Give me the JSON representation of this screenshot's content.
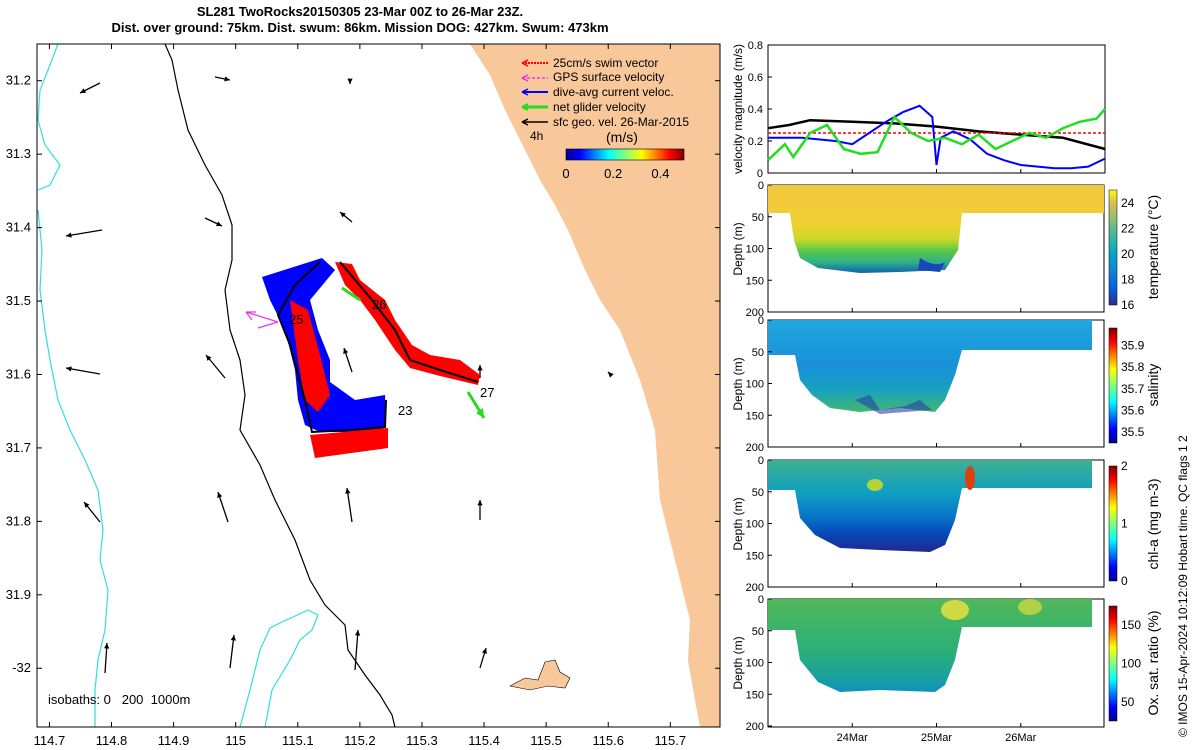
{
  "title_line1": "SL281 TwoRocks20150305 23-Mar 00Z to 26-Mar 23Z.",
  "title_line2": "Dist. over ground: 75km. Dist. swum: 86km. Mission DOG: 427km. Swum: 473km",
  "credit": "© IMOS 15-Apr-2024 10:12:09 Hobart time. QC flags 1  2",
  "colors": {
    "land": "#f8c79a",
    "isobath_0": "#000000",
    "isobath_200": "#000000",
    "isobath_1000": "#30e0e0",
    "swim_vector": "#ff0000",
    "gps_velocity": "#ee30ee",
    "dive_avg_current": "#0000ff",
    "net_glider": "#22dd22",
    "sfc_geo": "#000000"
  },
  "map": {
    "xlim": [
      114.68,
      115.78
    ],
    "ylim": [
      -32.08,
      -31.15
    ],
    "x_ticks": [
      "114.7",
      "114.8",
      "114.9",
      "115",
      "115.1",
      "115.2",
      "115.3",
      "115.4",
      "115.5",
      "115.6",
      "115.7"
    ],
    "y_ticks": [
      "31.2",
      "31.3",
      "31.4",
      "31.5",
      "31.6",
      "31.7",
      "31.8",
      "31.9",
      "-32"
    ],
    "isobaths_label": "isobaths: 0   200  1000m",
    "legend": [
      {
        "name": "swim",
        "label": "25cm/s swim vector"
      },
      {
        "name": "gps",
        "label": "GPS surface velocity"
      },
      {
        "name": "dive-avg",
        "label": "dive-avg current veloc."
      },
      {
        "name": "net",
        "label": "net glider velocity"
      },
      {
        "name": "sfc-geo",
        "label": "sfc geo. vel. 26-Mar-2015"
      }
    ],
    "time_marker": "4h",
    "colorbar": {
      "label": "(m/s)",
      "ticks": [
        "0",
        "0.2",
        "0.4"
      ],
      "range": [
        0,
        0.5
      ]
    },
    "day_labels": [
      "23",
      "25",
      "26",
      "27"
    ]
  },
  "chart_data": [
    {
      "type": "line",
      "title": "",
      "ylabel": "velocity magnitude (m/s)",
      "ylim": [
        0,
        0.8
      ],
      "y_ticks": [
        "0",
        "0.2",
        "0.4",
        "0.6",
        "0.8"
      ],
      "x_ticks": [
        "24Mar",
        "25Mar",
        "26Mar"
      ],
      "xlim": [
        0,
        4
      ],
      "series": [
        {
          "name": "sfc geo vel",
          "color": "#000000",
          "x": [
            0,
            0.25,
            0.5,
            1.0,
            1.5,
            2.0,
            2.5,
            3.0,
            3.5,
            4.0
          ],
          "y": [
            0.28,
            0.3,
            0.33,
            0.32,
            0.31,
            0.29,
            0.26,
            0.24,
            0.22,
            0.15
          ]
        },
        {
          "name": "25cm/s swim",
          "color": "#ff0000",
          "x": [
            0,
            0.5,
            1.0,
            1.5,
            2.0,
            2.5,
            3.0,
            3.5,
            4.0
          ],
          "y": [
            0.25,
            0.25,
            0.25,
            0.25,
            0.25,
            0.25,
            0.25,
            0.25,
            0.25
          ]
        },
        {
          "name": "dive-avg current",
          "color": "#0000ff",
          "x": [
            0,
            0.2,
            0.4,
            0.6,
            0.8,
            1.0,
            1.2,
            1.4,
            1.6,
            1.8,
            1.95,
            2.0,
            2.05,
            2.2,
            2.4,
            2.6,
            2.8,
            3.0,
            3.2,
            3.4,
            3.6,
            3.8,
            4.0
          ],
          "y": [
            0.22,
            0.22,
            0.22,
            0.21,
            0.2,
            0.18,
            0.25,
            0.32,
            0.38,
            0.42,
            0.35,
            0.05,
            0.22,
            0.26,
            0.21,
            0.12,
            0.08,
            0.05,
            0.04,
            0.03,
            0.03,
            0.04,
            0.09
          ]
        },
        {
          "name": "net glider",
          "color": "#22dd22",
          "x": [
            0,
            0.2,
            0.3,
            0.5,
            0.7,
            0.9,
            1.1,
            1.3,
            1.5,
            1.7,
            1.9,
            2.1,
            2.3,
            2.5,
            2.7,
            2.9,
            3.1,
            3.3,
            3.5,
            3.7,
            3.9,
            4.0
          ],
          "y": [
            0.08,
            0.18,
            0.1,
            0.25,
            0.3,
            0.15,
            0.12,
            0.13,
            0.35,
            0.25,
            0.2,
            0.22,
            0.18,
            0.24,
            0.15,
            0.2,
            0.25,
            0.22,
            0.28,
            0.32,
            0.34,
            0.4
          ]
        }
      ]
    },
    {
      "type": "heatmap",
      "ylabel": "Depth (m)",
      "colorbar_label": "temperature (°C)",
      "ylim": [
        0,
        200
      ],
      "y_ticks": [
        "0",
        "50",
        "100",
        "150",
        "200"
      ],
      "clim": [
        16,
        25
      ],
      "c_ticks": [
        "16",
        "18",
        "20",
        "22",
        "24"
      ]
    },
    {
      "type": "heatmap",
      "ylabel": "Depth (m)",
      "colorbar_label": "salinity",
      "ylim": [
        0,
        200
      ],
      "y_ticks": [
        "0",
        "50",
        "100",
        "150",
        "200"
      ],
      "clim": [
        35.45,
        35.98
      ],
      "c_ticks": [
        "35.5",
        "35.6",
        "35.7",
        "35.8",
        "35.9"
      ]
    },
    {
      "type": "heatmap",
      "ylabel": "Depth (m)",
      "colorbar_label": "chl-a (mg m-3)",
      "ylim": [
        0,
        200
      ],
      "y_ticks": [
        "0",
        "50",
        "100",
        "150",
        "200"
      ],
      "clim": [
        0,
        2
      ],
      "c_ticks": [
        "0",
        "1",
        "2"
      ]
    },
    {
      "type": "heatmap",
      "ylabel": "Depth (m)",
      "colorbar_label": "Ox. sat. ratio (%)",
      "ylim": [
        0,
        200
      ],
      "y_ticks": [
        "0",
        "50",
        "100",
        "150",
        "200"
      ],
      "clim": [
        25,
        175
      ],
      "c_ticks": [
        "50",
        "100",
        "150"
      ],
      "x_ticks": [
        "24Mar",
        "25Mar",
        "26Mar"
      ]
    }
  ]
}
